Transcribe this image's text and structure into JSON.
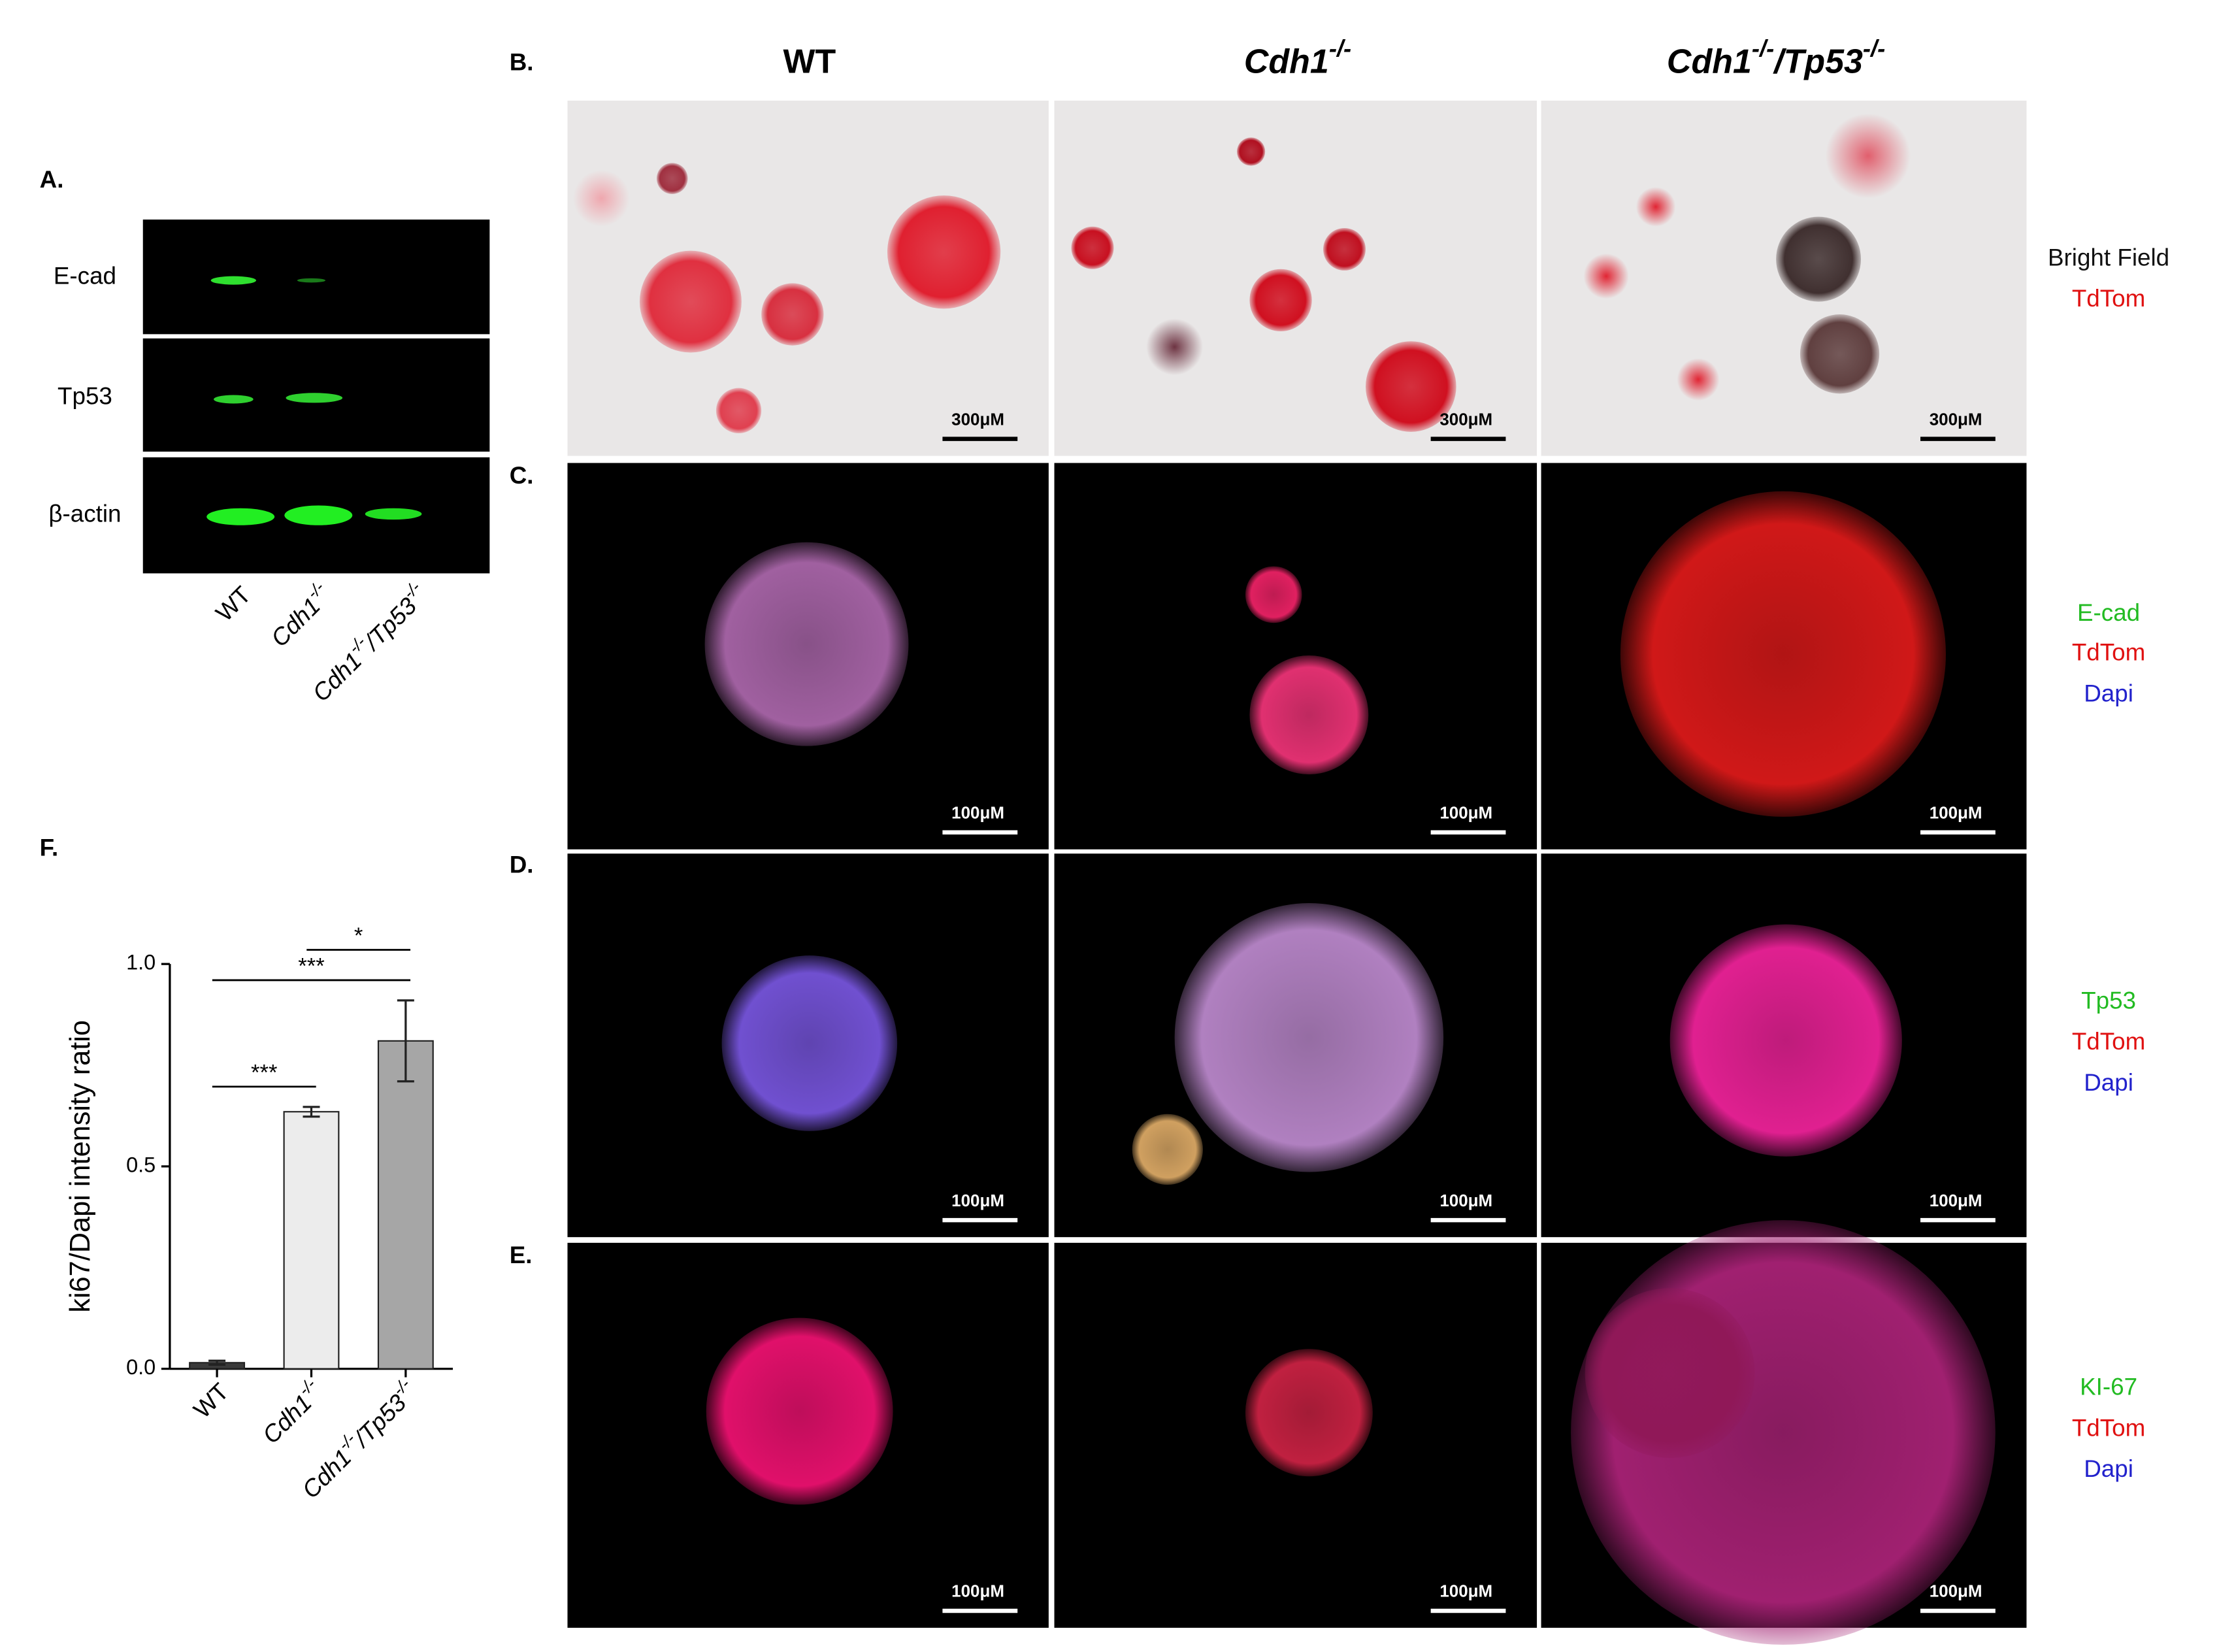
{
  "panel_labels": [
    "A.",
    "B.",
    "C.",
    "D.",
    "E.",
    "F."
  ],
  "genotypes": [
    [
      "WT"
    ],
    [
      "Cdh1",
      "-/-"
    ],
    [
      "Cdh1",
      "-/-",
      "/Tp53",
      "-/-"
    ]
  ],
  "blot_labels": [
    "E-cad",
    "Tp53",
    "β-actin"
  ],
  "stains": [
    [
      "Bright Field",
      "TdTom"
    ],
    [
      "E-cad",
      "TdTom",
      "Dapi"
    ],
    [
      "Tp53",
      "TdTom",
      "Dapi"
    ],
    [
      "KI-67",
      "TdTom",
      "Dapi"
    ]
  ],
  "scale_bars": [
    [
      "300μM",
      "300μM",
      "300μM"
    ],
    [
      "100μM",
      "100μM",
      "100μM"
    ],
    [
      "100μM",
      "100μM",
      "100μM"
    ],
    [
      "100μM",
      "100μM",
      "100μM"
    ]
  ],
  "chart_data": {
    "type": "bar",
    "y_label": "ki67/Dapi intensity ratio",
    "categories": [
      [
        "WT"
      ],
      [
        "Cdh1",
        "-/-"
      ],
      [
        "Cdh1",
        "-/-",
        "/Tp53",
        "-/-"
      ]
    ],
    "values": [
      0.015,
      0.635,
      0.81
    ],
    "errors": [
      0.005,
      0.012,
      0.1
    ],
    "colors": [
      "#3a3a3a",
      "#ececec",
      "#a6a6a6"
    ],
    "ylim": [
      0,
      1
    ],
    "yticks": [
      {
        "value": 0,
        "label": "0.0"
      },
      {
        "value": 0.5,
        "label": "0.5"
      },
      {
        "value": 1,
        "label": "1.0"
      }
    ],
    "significance": [
      {
        "text": "***",
        "pair": [
          0,
          1
        ]
      },
      {
        "text": "***",
        "pair": [
          0,
          2
        ]
      },
      {
        "text": "*",
        "pair": [
          1,
          2
        ]
      }
    ]
  }
}
